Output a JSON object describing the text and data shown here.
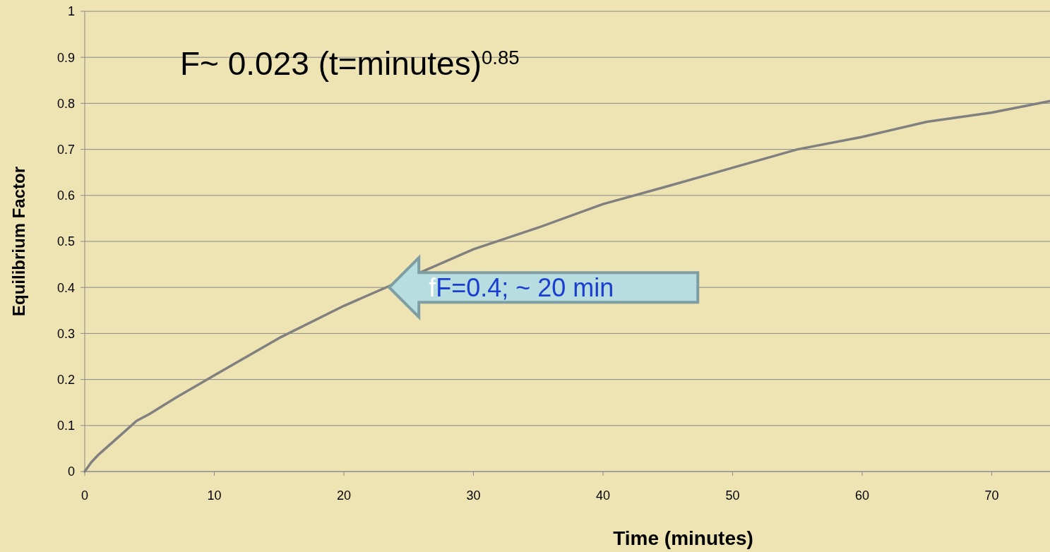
{
  "chart_data": {
    "type": "line",
    "xlabel": "Time (minutes)",
    "ylabel": "Equilibrium Factor",
    "x": [
      0,
      0.5,
      1,
      2,
      3,
      4,
      5,
      7,
      10,
      15,
      20,
      30,
      35,
      40,
      45,
      50,
      55,
      60,
      65,
      70,
      74.5
    ],
    "series": [
      {
        "color": "#808080",
        "values": [
          0,
          0.02,
          0.035,
          0.06,
          0.085,
          0.11,
          0.125,
          0.16,
          0.209,
          0.29,
          0.36,
          0.483,
          0.53,
          0.581,
          0.62,
          0.66,
          0.7,
          0.727,
          0.76,
          0.78,
          0.805
        ]
      }
    ],
    "xlim": [
      0,
      74.5
    ],
    "ylim": [
      0,
      1
    ],
    "xticks": [
      0,
      10,
      20,
      30,
      40,
      50,
      60,
      70
    ],
    "yticks": [
      0,
      0.1,
      0.2,
      0.3,
      0.4,
      0.5,
      0.6,
      0.7,
      0.8,
      0.9,
      1
    ],
    "grid": "y",
    "marker": "none",
    "line_style": "solid",
    "annotations": [
      "F~ 0.023 (t=minutes)$^{0.85}$",
      {
        "text": "fF=0.4; ~ 20 min",
        "x": 23.5,
        "y": 0.4
      }
    ]
  }
}
